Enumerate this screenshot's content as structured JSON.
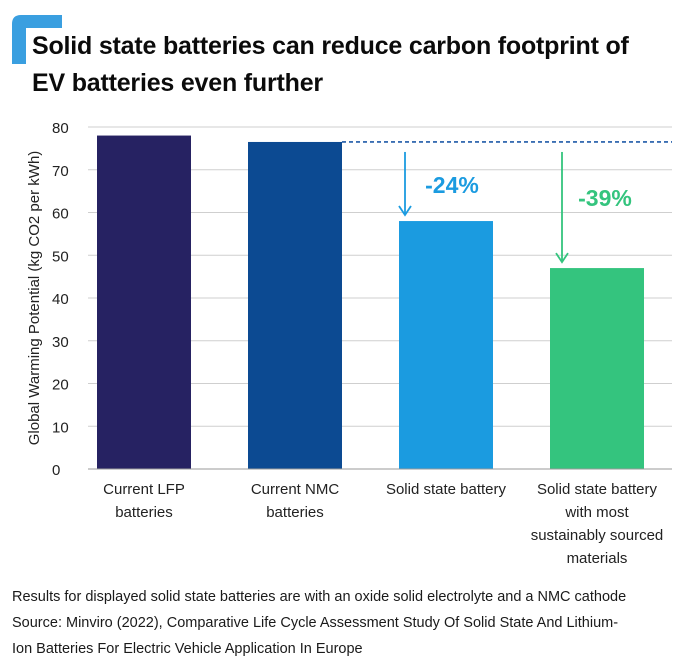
{
  "title_lines": [
    "Solid state batteries can reduce carbon footprint of",
    "EV batteries even further"
  ],
  "footnote_lines": [
    "Results for displayed solid state batteries are with an oxide solid electrolyte and a NMC cathode",
    "Source: Minviro (2022), Comparative Life Cycle Assessment Study Of Solid State And Lithium-",
    "Ion Batteries For Electric Vehicle Application In Europe"
  ],
  "colors": {
    "accent": "#3a9fe0",
    "grid": "#cfcfcf",
    "reference_line": "#1e5aa8"
  },
  "chart_data": {
    "type": "bar",
    "ylabel": "Global Warming Potential (kg CO2 per kWh)",
    "ylim": [
      0,
      80
    ],
    "yticks": [
      0,
      10,
      20,
      30,
      40,
      50,
      60,
      70,
      80
    ],
    "grid": true,
    "categories": [
      [
        "Current LFP",
        "batteries"
      ],
      [
        "Current NMC",
        "batteries"
      ],
      [
        "Solid state battery"
      ],
      [
        "Solid state battery",
        "with most",
        "sustainably sourced",
        "materials"
      ]
    ],
    "values": [
      78,
      76.5,
      58,
      47
    ],
    "bar_colors": [
      "#262262",
      "#0c4a92",
      "#1b9be0",
      "#34c47e"
    ],
    "reference_value": 76.5,
    "annotations": [
      {
        "bar": 2,
        "label": "-24%",
        "color": "#1b9be0"
      },
      {
        "bar": 3,
        "label": "-39%",
        "color": "#34c47e"
      }
    ]
  }
}
